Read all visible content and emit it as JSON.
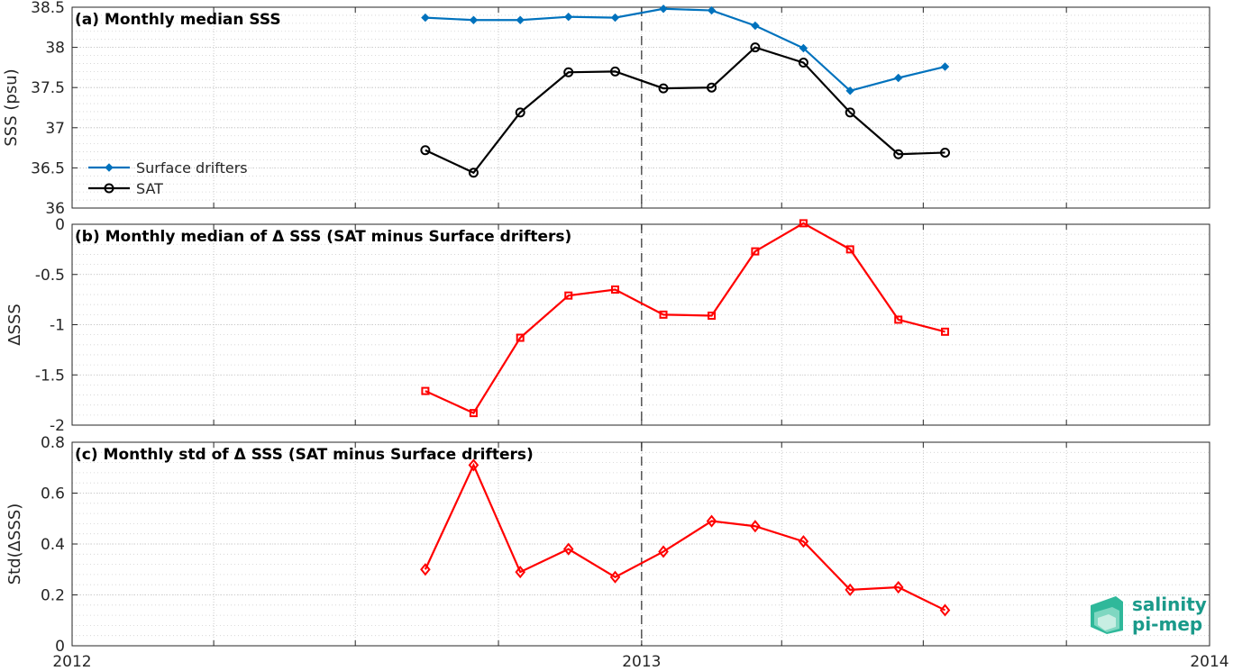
{
  "chart_data": [
    {
      "type": "line",
      "title": "(a) Monthly median SSS",
      "xlabel": "",
      "ylabel": "SSS (psu)",
      "ylim": [
        36,
        38.5
      ],
      "yticks": [
        "36",
        "36.5",
        "37",
        "37.5",
        "38",
        "38.5"
      ],
      "ytick_values": [
        36,
        36.5,
        37,
        37.5,
        38,
        38.5
      ],
      "x": [
        "2012-08",
        "2012-09",
        "2012-10",
        "2012-11",
        "2012-12",
        "2013-01",
        "2013-02",
        "2013-03",
        "2013-04",
        "2013-05",
        "2013-06",
        "2013-07"
      ],
      "series": [
        {
          "name": "Surface drifters",
          "color": "#0072bd",
          "marker": "diamond-filled",
          "values": [
            38.37,
            38.34,
            38.34,
            38.38,
            38.37,
            38.48,
            38.46,
            38.27,
            37.99,
            37.46,
            37.62,
            37.76
          ]
        },
        {
          "name": "SAT",
          "color": "#000000",
          "marker": "circle-open",
          "values": [
            36.72,
            36.44,
            37.19,
            37.69,
            37.7,
            37.49,
            37.5,
            38.0,
            37.81,
            37.19,
            36.67,
            36.69
          ]
        }
      ],
      "legend": "bottom-left",
      "grid": true
    },
    {
      "type": "line",
      "title": "(b) Monthly median of Δ SSS (SAT minus Surface drifters)",
      "xlabel": "",
      "ylabel": "ΔSSS",
      "ylim": [
        -2,
        0
      ],
      "yticks": [
        "-2",
        "-1.5",
        "-1",
        "-0.5",
        "0"
      ],
      "ytick_values": [
        -2,
        -1.5,
        -1,
        -0.5,
        0
      ],
      "x": [
        "2012-08",
        "2012-09",
        "2012-10",
        "2012-11",
        "2012-12",
        "2013-01",
        "2013-02",
        "2013-03",
        "2013-04",
        "2013-05",
        "2013-06",
        "2013-07"
      ],
      "series": [
        {
          "color": "#ff0000",
          "marker": "square-open",
          "values": [
            -1.66,
            -1.88,
            -1.13,
            -0.71,
            -0.65,
            -0.9,
            -0.91,
            -0.27,
            0.01,
            -0.25,
            -0.95,
            -1.07
          ]
        }
      ],
      "zero_line": true,
      "grid": true
    },
    {
      "type": "line",
      "title": "(c) Monthly std of Δ SSS (SAT minus Surface drifters)",
      "xlabel": "",
      "ylabel": "Std(ΔSSS)",
      "ylim": [
        0,
        0.8
      ],
      "yticks": [
        "0",
        "0.2",
        "0.4",
        "0.6",
        "0.8"
      ],
      "ytick_values": [
        0,
        0.2,
        0.4,
        0.6,
        0.8
      ],
      "x": [
        "2012-08",
        "2012-09",
        "2012-10",
        "2012-11",
        "2012-12",
        "2013-01",
        "2013-02",
        "2013-03",
        "2013-04",
        "2013-05",
        "2013-06",
        "2013-07"
      ],
      "series": [
        {
          "color": "#ff0000",
          "marker": "diamond-open",
          "values": [
            0.3,
            0.71,
            0.29,
            0.38,
            0.27,
            0.37,
            0.49,
            0.47,
            0.41,
            0.22,
            0.23,
            0.14
          ]
        }
      ],
      "grid": true
    }
  ],
  "shared_x": {
    "range": [
      "2012-01-01",
      "2014-01-01"
    ],
    "tick_labels": [
      "2012",
      "2013",
      "2014"
    ],
    "tick_dates": [
      "2012-01-01",
      "2013-01-01",
      "2014-01-01"
    ],
    "minor_tick_dates": [
      "2012-01-01",
      "2012-04-01",
      "2012-07-01",
      "2012-10-01",
      "2013-01-01",
      "2013-04-01",
      "2013-07-01",
      "2013-10-01",
      "2014-01-01"
    ],
    "reference_date": "2013-01-01"
  },
  "logo": {
    "line1": "salinity",
    "line2": "pi-mep",
    "color": "#1a9a8a"
  }
}
